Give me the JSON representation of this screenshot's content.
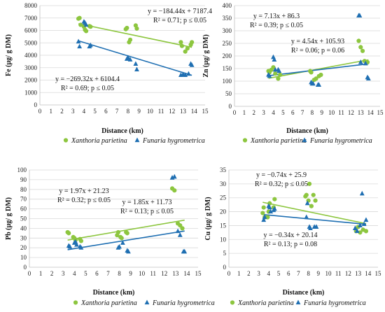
{
  "colors": {
    "xanthoria": "#8DC63F",
    "funaria": "#1F6FB2"
  },
  "panels": [
    {
      "ylabel": "Fe (µg/ g DM)",
      "xlabel": "Distance (km)",
      "yticks": [
        "0",
        "1000",
        "2000",
        "3000",
        "4000",
        "5000",
        "6000",
        "7000",
        "8000"
      ],
      "xticks": [
        "0",
        "1",
        "2",
        "3",
        "4",
        "5",
        "6",
        "7",
        "8",
        "9",
        "10",
        "11",
        "12",
        "13",
        "14",
        "15"
      ],
      "eq1": "y = −184.44x + 7187.4",
      "eq1b": "R² = 0.71; p ≤ 0.05",
      "eq2": "y = −269.32x + 6104.4",
      "eq2b": "R² = 0.69; p ≤ 0.05",
      "legend_x": "Xanthoria parietina",
      "legend_f": "Funaria hygrometrica"
    },
    {
      "ylabel": "Zn (µg/ g DM)",
      "xlabel": "Distance (km)",
      "yticks": [
        "0",
        "50",
        "100",
        "150",
        "200",
        "250",
        "300",
        "350",
        "400"
      ],
      "xticks": [
        "0",
        "1",
        "2",
        "3",
        "4",
        "5",
        "6",
        "7",
        "8",
        "9",
        "10",
        "11",
        "12",
        "13",
        "14",
        "15"
      ],
      "eq1": "y = 7.13x + 86.3",
      "eq1b": "R² = 0.39; p ≤ 0.05",
      "eq2": "y = 4.54x + 105.93",
      "eq2b": "R² = 0.06; p = 0.06",
      "legend_x": "Xanthoria parietina",
      "legend_f": "Funaria hygrometrica"
    },
    {
      "ylabel": "Pb (µg/ g DM)",
      "xlabel": "Distance (km)",
      "yticks": [
        "0",
        "10",
        "20",
        "30",
        "40",
        "50",
        "60",
        "70",
        "80",
        "90",
        "100"
      ],
      "xticks": [
        "0",
        "1",
        "2",
        "3",
        "4",
        "5",
        "6",
        "7",
        "8",
        "9",
        "10",
        "11",
        "12",
        "13",
        "14",
        "15"
      ],
      "eq1": "y = 1.97x + 21.23",
      "eq1b": "R² = 0.32; p ≤ 0.05",
      "eq2": "y = 1.85x + 11.73",
      "eq2b": "R² = 0.13; p ≤ 0.05",
      "legend_x": "Xanthoria parietina",
      "legend_f": "Funaria hygrometrica"
    },
    {
      "ylabel": "Cu (µg/ g DM)",
      "xlabel": "Distance (km)",
      "yticks": [
        "0",
        "5",
        "10",
        "15",
        "20",
        "25",
        "30",
        "35"
      ],
      "xticks": [
        "0",
        "1",
        "2",
        "3",
        "4",
        "5",
        "6",
        "7",
        "8",
        "9",
        "10",
        "11",
        "12",
        "13",
        "14",
        "15"
      ],
      "eq1": "y = −0.74x + 25.9",
      "eq1b": "R² = 0.32; p ≤ 0.05",
      "eq2": "y = −0.34x + 20.14",
      "eq2b": "R² = 0.13; p = 0.08",
      "legend_x": "Xanthoria parietina",
      "legend_f": "Funaria hygrometrica"
    }
  ],
  "chart_data": [
    {
      "type": "scatter",
      "ylabel": "Fe (µg/ g DM)",
      "xlabel": "Distance (km)",
      "xlim": [
        0,
        15
      ],
      "ylim": [
        0,
        8000
      ],
      "grid": true,
      "legend": "bottom",
      "series": [
        {
          "name": "Xanthoria parietina",
          "marker": "circle",
          "x": [
            3.5,
            3.6,
            3.7,
            4.0,
            4.1,
            4.2,
            4.5,
            4.6,
            7.8,
            7.9,
            8.1,
            8.2,
            8.7,
            8.8,
            12.8,
            12.9,
            13.2,
            13.4,
            13.7,
            13.8
          ],
          "y": [
            6950,
            7000,
            6450,
            6300,
            6050,
            5950,
            6350,
            6300,
            6100,
            6200,
            5050,
            5250,
            6400,
            6150,
            5050,
            4750,
            4300,
            4550,
            4850,
            5050
          ],
          "trend": "y = −184.44x + 7187.4",
          "r2": "R² = 0.71; p ≤ 0.05"
        },
        {
          "name": "Funaria hygrometrica",
          "marker": "triangle",
          "x": [
            3.5,
            3.6,
            4.0,
            4.1,
            4.2,
            4.5,
            4.6,
            7.9,
            8.0,
            8.2,
            8.7,
            8.8,
            12.8,
            13.0,
            13.2,
            13.5,
            13.7,
            13.8
          ],
          "y": [
            5100,
            4700,
            6700,
            6600,
            6450,
            4700,
            4800,
            3700,
            3800,
            3650,
            3300,
            2850,
            2400,
            2450,
            2400,
            2500,
            3300,
            3200
          ],
          "trend": "y = −269.32x + 6104.4",
          "r2": "R² = 0.69; p ≤ 0.05"
        }
      ]
    },
    {
      "type": "scatter",
      "ylabel": "Zn (µg/ g DM)",
      "xlabel": "Distance (km)",
      "xlim": [
        0,
        15
      ],
      "ylim": [
        0,
        400
      ],
      "grid": true,
      "legend": "bottom",
      "series": [
        {
          "name": "Xanthoria parietina",
          "marker": "circle",
          "x": [
            3.5,
            3.6,
            3.8,
            4.0,
            4.2,
            4.5,
            4.7,
            7.8,
            7.9,
            8.2,
            8.4,
            8.7,
            8.9,
            12.8,
            13.0,
            13.2,
            13.4,
            13.7
          ],
          "y": [
            140,
            135,
            145,
            155,
            130,
            110,
            125,
            140,
            135,
            105,
            110,
            120,
            125,
            260,
            235,
            220,
            180,
            175
          ],
          "trend": "y = 7.13x + 86.3",
          "r2": "R² = 0.39; p ≤ 0.05"
        },
        {
          "name": "Funaria hygrometrica",
          "marker": "triangle",
          "x": [
            3.5,
            3.6,
            4.0,
            4.1,
            4.2,
            4.5,
            4.6,
            7.9,
            8.0,
            8.1,
            8.6,
            8.7,
            12.8,
            12.9,
            13.0,
            13.5,
            13.7,
            13.8
          ],
          "y": [
            125,
            120,
            195,
            185,
            145,
            145,
            140,
            95,
            90,
            90,
            85,
            85,
            360,
            360,
            175,
            170,
            115,
            110
          ],
          "trend": "y = 4.54x + 105.93",
          "r2": "R² = 0.06; p = 0.06"
        }
      ]
    },
    {
      "type": "scatter",
      "ylabel": "Pb (µg/ g DM)",
      "xlabel": "Distance (km)",
      "xlim": [
        0,
        15
      ],
      "ylim": [
        0,
        100
      ],
      "grid": true,
      "legend": "bottom",
      "series": [
        {
          "name": "Xanthoria parietina",
          "marker": "circle",
          "x": [
            3.4,
            3.5,
            3.9,
            4.0,
            4.1,
            4.5,
            4.6,
            7.8,
            7.9,
            8.1,
            8.2,
            8.6,
            8.7,
            12.7,
            12.9,
            13.2,
            13.4,
            13.6
          ],
          "y": [
            36,
            35,
            31,
            30,
            28,
            29,
            27,
            33,
            36,
            31,
            30,
            36,
            35,
            81,
            79,
            45,
            43,
            40
          ],
          "trend": "y = 1.97x + 21.23",
          "r2": "R² = 0.32; p ≤ 0.05"
        },
        {
          "name": "Funaria hygrometrica",
          "marker": "triangle",
          "x": [
            3.5,
            3.6,
            4.0,
            4.1,
            4.2,
            4.5,
            4.6,
            7.9,
            8.0,
            8.3,
            8.7,
            8.8,
            12.7,
            12.9,
            13.2,
            13.4,
            13.7,
            13.8
          ],
          "y": [
            22,
            21,
            25,
            26,
            23,
            21,
            20,
            20,
            21,
            25,
            17,
            16,
            92,
            93,
            37,
            33,
            16,
            16
          ],
          "trend": "y = 1.85x + 11.73",
          "r2": "R² = 0.13; p ≤ 0.05"
        }
      ]
    },
    {
      "type": "scatter",
      "ylabel": "Cu (µg/ g DM)",
      "xlabel": "Distance (km)",
      "xlim": [
        0,
        15
      ],
      "ylim": [
        0,
        35
      ],
      "grid": true,
      "legend": "bottom",
      "series": [
        {
          "name": "Xanthoria parietina",
          "marker": "circle",
          "x": [
            3.4,
            3.5,
            3.6,
            3.9,
            4.0,
            4.1,
            4.5,
            4.6,
            7.7,
            7.8,
            8.0,
            8.1,
            8.3,
            8.5,
            8.7,
            12.8,
            13.0,
            13.2,
            13.5,
            13.8
          ],
          "y": [
            19.5,
            21.5,
            18,
            18,
            20,
            23,
            21.5,
            24.5,
            25.5,
            26,
            24,
            30,
            22,
            26,
            24,
            13,
            14.5,
            12.5,
            13.5,
            13
          ],
          "trend": "y = −0.74x + 25.9",
          "r2": "R² = 0.32; p ≤ 0.05"
        },
        {
          "name": "Funaria hygrometrica",
          "marker": "triangle",
          "x": [
            3.5,
            3.6,
            4.0,
            4.1,
            4.2,
            4.5,
            4.6,
            7.8,
            7.9,
            8.1,
            8.2,
            8.6,
            8.8,
            12.7,
            12.9,
            13.2,
            13.4,
            13.6,
            13.8
          ],
          "y": [
            17,
            18,
            22,
            21.5,
            20,
            20.5,
            21,
            18,
            23,
            14.5,
            14,
            14.5,
            14.5,
            14,
            13,
            15,
            26.5,
            15.5,
            17
          ],
          "trend": "y = −0.34x + 20.14",
          "r2": "R² = 0.13; p = 0.08"
        }
      ]
    }
  ]
}
